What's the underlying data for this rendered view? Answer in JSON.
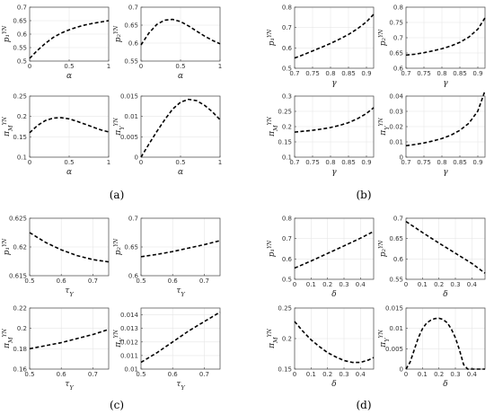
{
  "panel_labels": [
    "(a)",
    "(b)",
    "(c)",
    "(d)"
  ],
  "colors": {
    "curve": "#000000",
    "grid": "#e6e6e6",
    "axis": "#444444"
  },
  "chart_data": [
    {
      "id": "a1",
      "type": "line",
      "xlabel": "α",
      "ylabel": "p₁^{YN}",
      "xlim": [
        0,
        1
      ],
      "ylim": [
        0.5,
        0.7
      ],
      "xticks": [
        0,
        0.5,
        1
      ],
      "yticks": [
        0.5,
        0.55,
        0.6,
        0.65,
        0.7
      ],
      "xtick_labels": [
        "0",
        "0.5",
        "1"
      ],
      "ytick_labels": [
        "0.5",
        "0.55",
        "0.6",
        "0.65",
        "0.7"
      ],
      "grid": true,
      "style": "dashed",
      "series": [
        {
          "x": [
            0,
            0.1,
            0.2,
            0.3,
            0.4,
            0.5,
            0.6,
            0.7,
            0.8,
            0.9,
            1.0
          ],
          "y": [
            0.51,
            0.54,
            0.566,
            0.588,
            0.604,
            0.616,
            0.626,
            0.634,
            0.64,
            0.645,
            0.65
          ]
        }
      ]
    },
    {
      "id": "a2",
      "type": "line",
      "xlabel": "α",
      "ylabel": "p₂^{YN}",
      "xlim": [
        0,
        1
      ],
      "ylim": [
        0.55,
        0.7
      ],
      "xticks": [
        0,
        0.5,
        1
      ],
      "yticks": [
        0.55,
        0.6,
        0.65,
        0.7
      ],
      "xtick_labels": [
        "0",
        "0.5",
        "1"
      ],
      "ytick_labels": [
        "0.55",
        "0.6",
        "0.65",
        "0.7"
      ],
      "grid": true,
      "style": "dashed",
      "series": [
        {
          "x": [
            0,
            0.1,
            0.2,
            0.3,
            0.4,
            0.5,
            0.6,
            0.7,
            0.8,
            0.9,
            1.0
          ],
          "y": [
            0.595,
            0.628,
            0.652,
            0.664,
            0.666,
            0.66,
            0.648,
            0.634,
            0.62,
            0.608,
            0.598
          ]
        }
      ]
    },
    {
      "id": "a3",
      "type": "line",
      "xlabel": "α",
      "ylabel": "π_M^{YN}",
      "xlim": [
        0,
        1
      ],
      "ylim": [
        0.1,
        0.25
      ],
      "xticks": [
        0,
        0.5,
        1
      ],
      "yticks": [
        0.1,
        0.15,
        0.2,
        0.25
      ],
      "xtick_labels": [
        "0",
        "0.5",
        "1"
      ],
      "ytick_labels": [
        "0.1",
        "0.15",
        "0.2",
        "0.25"
      ],
      "grid": true,
      "style": "dashed",
      "series": [
        {
          "x": [
            0,
            0.1,
            0.2,
            0.3,
            0.4,
            0.5,
            0.6,
            0.7,
            0.8,
            0.9,
            1.0
          ],
          "y": [
            0.16,
            0.178,
            0.19,
            0.196,
            0.197,
            0.194,
            0.188,
            0.181,
            0.174,
            0.167,
            0.162
          ]
        }
      ]
    },
    {
      "id": "a4",
      "type": "line",
      "xlabel": "α",
      "ylabel": "π_Y^{YN}",
      "xlim": [
        0,
        1
      ],
      "ylim": [
        0,
        0.015
      ],
      "xticks": [
        0,
        0.5,
        1
      ],
      "yticks": [
        0,
        0.005,
        0.01,
        0.015
      ],
      "xtick_labels": [
        "0",
        "0.5",
        "1"
      ],
      "ytick_labels": [
        "0",
        "0.005",
        "0.01",
        "0.015"
      ],
      "grid": true,
      "style": "dashed",
      "series": [
        {
          "x": [
            0,
            0.1,
            0.2,
            0.3,
            0.4,
            0.5,
            0.6,
            0.7,
            0.8,
            0.9,
            1.0
          ],
          "y": [
            0,
            0.0032,
            0.0063,
            0.0092,
            0.0118,
            0.0135,
            0.0142,
            0.0139,
            0.0128,
            0.0112,
            0.0092
          ]
        }
      ]
    },
    {
      "id": "b1",
      "type": "line",
      "xlabel": "γ",
      "ylabel": "p₁^{YN}",
      "xlim": [
        0.7,
        0.92
      ],
      "ylim": [
        0.5,
        0.8
      ],
      "xticks": [
        0.7,
        0.75,
        0.8,
        0.85,
        0.9
      ],
      "yticks": [
        0.5,
        0.6,
        0.7,
        0.8
      ],
      "xtick_labels": [
        "0.7",
        "0.75",
        "0.8",
        "0.85",
        "0.9"
      ],
      "ytick_labels": [
        "0.5",
        "0.6",
        "0.7",
        "0.8"
      ],
      "grid": true,
      "style": "dashed",
      "series": [
        {
          "x": [
            0.7,
            0.725,
            0.75,
            0.775,
            0.8,
            0.825,
            0.85,
            0.875,
            0.9,
            0.92
          ],
          "y": [
            0.55,
            0.567,
            0.585,
            0.603,
            0.622,
            0.643,
            0.666,
            0.694,
            0.728,
            0.765
          ]
        }
      ]
    },
    {
      "id": "b2",
      "type": "line",
      "xlabel": "γ",
      "ylabel": "p₂^{YN}",
      "xlim": [
        0.7,
        0.92
      ],
      "ylim": [
        0.6,
        0.8
      ],
      "xticks": [
        0.7,
        0.75,
        0.8,
        0.85,
        0.9
      ],
      "yticks": [
        0.6,
        0.65,
        0.7,
        0.75,
        0.8
      ],
      "xtick_labels": [
        "0.7",
        "0.75",
        "0.8",
        "0.85",
        "0.9"
      ],
      "ytick_labels": [
        "0.6",
        "0.65",
        "0.7",
        "0.75",
        "0.8"
      ],
      "grid": true,
      "style": "dashed",
      "series": [
        {
          "x": [
            0.7,
            0.725,
            0.75,
            0.775,
            0.8,
            0.825,
            0.85,
            0.875,
            0.9,
            0.92
          ],
          "y": [
            0.643,
            0.646,
            0.651,
            0.657,
            0.664,
            0.673,
            0.685,
            0.702,
            0.728,
            0.765
          ]
        }
      ]
    },
    {
      "id": "b3",
      "type": "line",
      "xlabel": "γ",
      "ylabel": "π_M^{YN}",
      "xlim": [
        0.7,
        0.92
      ],
      "ylim": [
        0.1,
        0.3
      ],
      "xticks": [
        0.7,
        0.75,
        0.8,
        0.85,
        0.9
      ],
      "yticks": [
        0.1,
        0.15,
        0.2,
        0.25,
        0.3
      ],
      "xtick_labels": [
        "0.7",
        "0.75",
        "0.8",
        "0.85",
        "0.9"
      ],
      "ytick_labels": [
        "0.1",
        "0.15",
        "0.2",
        "0.25",
        "0.3"
      ],
      "grid": true,
      "style": "dashed",
      "series": [
        {
          "x": [
            0.7,
            0.725,
            0.75,
            0.775,
            0.8,
            0.825,
            0.85,
            0.875,
            0.9,
            0.92
          ],
          "y": [
            0.182,
            0.185,
            0.188,
            0.192,
            0.197,
            0.204,
            0.213,
            0.226,
            0.243,
            0.262
          ]
        }
      ]
    },
    {
      "id": "b4",
      "type": "line",
      "xlabel": "γ",
      "ylabel": "π_Y^{YN}",
      "xlim": [
        0.7,
        0.92
      ],
      "ylim": [
        0,
        0.04
      ],
      "xticks": [
        0.7,
        0.75,
        0.8,
        0.85,
        0.9
      ],
      "yticks": [
        0,
        0.01,
        0.02,
        0.03,
        0.04
      ],
      "xtick_labels": [
        "0.7",
        "0.75",
        "0.8",
        "0.85",
        "0.9"
      ],
      "ytick_labels": [
        "0",
        "0.01",
        "0.02",
        "0.03",
        "0.04"
      ],
      "grid": true,
      "style": "dashed",
      "series": [
        {
          "x": [
            0.7,
            0.725,
            0.75,
            0.775,
            0.8,
            0.825,
            0.85,
            0.875,
            0.9,
            0.92
          ],
          "y": [
            0.0075,
            0.0083,
            0.0093,
            0.0106,
            0.0122,
            0.0144,
            0.0176,
            0.0222,
            0.0302,
            0.0435
          ]
        }
      ]
    },
    {
      "id": "c1",
      "type": "line",
      "xlabel": "τ_Y",
      "ylabel": "p₁^{YN}",
      "xlim": [
        0.5,
        0.75
      ],
      "ylim": [
        0.615,
        0.625
      ],
      "xticks": [
        0.5,
        0.6,
        0.7
      ],
      "yticks": [
        0.615,
        0.62,
        0.625
      ],
      "xtick_labels": [
        "0.5",
        "0.6",
        "0.7"
      ],
      "ytick_labels": [
        "0.615",
        "0.62",
        "0.625"
      ],
      "grid": true,
      "style": "dashed",
      "series": [
        {
          "x": [
            0.5,
            0.55,
            0.6,
            0.65,
            0.7,
            0.75
          ],
          "y": [
            0.6225,
            0.6208,
            0.6195,
            0.6185,
            0.6178,
            0.6174
          ]
        }
      ]
    },
    {
      "id": "c2",
      "type": "line",
      "xlabel": "τ_Y",
      "ylabel": "p₂^{YN}",
      "xlim": [
        0.5,
        0.75
      ],
      "ylim": [
        0.6,
        0.7
      ],
      "xticks": [
        0.5,
        0.6,
        0.7
      ],
      "yticks": [
        0.6,
        0.65,
        0.7
      ],
      "xtick_labels": [
        "0.5",
        "0.6",
        "0.7"
      ],
      "ytick_labels": [
        "0.6",
        "0.65",
        "0.7"
      ],
      "grid": true,
      "style": "dashed",
      "series": [
        {
          "x": [
            0.5,
            0.55,
            0.6,
            0.65,
            0.7,
            0.75
          ],
          "y": [
            0.633,
            0.637,
            0.642,
            0.648,
            0.654,
            0.661
          ]
        }
      ]
    },
    {
      "id": "c3",
      "type": "line",
      "xlabel": "τ_Y",
      "ylabel": "π_M^{YN}",
      "xlim": [
        0.5,
        0.75
      ],
      "ylim": [
        0.16,
        0.22
      ],
      "xticks": [
        0.5,
        0.6,
        0.7
      ],
      "yticks": [
        0.16,
        0.18,
        0.2,
        0.22
      ],
      "xtick_labels": [
        "0.5",
        "0.6",
        "0.7"
      ],
      "ytick_labels": [
        "0.16",
        "0.18",
        "0.2",
        "0.22"
      ],
      "grid": true,
      "style": "dashed",
      "series": [
        {
          "x": [
            0.5,
            0.55,
            0.6,
            0.65,
            0.7,
            0.75
          ],
          "y": [
            0.18,
            0.183,
            0.186,
            0.19,
            0.194,
            0.199
          ]
        }
      ]
    },
    {
      "id": "c4",
      "type": "line",
      "xlabel": "τ_Y",
      "ylabel": "π_Y^{YN}",
      "xlim": [
        0.5,
        0.75
      ],
      "ylim": [
        0.01,
        0.0145
      ],
      "xticks": [
        0.5,
        0.6,
        0.7
      ],
      "yticks": [
        0.01,
        0.011,
        0.012,
        0.013,
        0.014
      ],
      "xtick_labels": [
        "0.5",
        "0.6",
        "0.7"
      ],
      "ytick_labels": [
        "0.01",
        "0.011",
        "0.012",
        "0.013",
        "0.014"
      ],
      "grid": true,
      "style": "dashed",
      "series": [
        {
          "x": [
            0.5,
            0.55,
            0.6,
            0.65,
            0.7,
            0.75
          ],
          "y": [
            0.0105,
            0.0112,
            0.012,
            0.0128,
            0.0135,
            0.0142
          ]
        }
      ]
    },
    {
      "id": "d1",
      "type": "line",
      "xlabel": "δ",
      "ylabel": "p₁^{YN}",
      "xlim": [
        0,
        0.48
      ],
      "ylim": [
        0.5,
        0.8
      ],
      "xticks": [
        0,
        0.1,
        0.2,
        0.3,
        0.4
      ],
      "yticks": [
        0.5,
        0.6,
        0.7,
        0.8
      ],
      "xtick_labels": [
        "0",
        "0.1",
        "0.2",
        "0.3",
        "0.4"
      ],
      "ytick_labels": [
        "0.5",
        "0.6",
        "0.7",
        "0.8"
      ],
      "grid": true,
      "style": "dashed",
      "series": [
        {
          "x": [
            0,
            0.1,
            0.2,
            0.3,
            0.4,
            0.48
          ],
          "y": [
            0.555,
            0.59,
            0.627,
            0.664,
            0.702,
            0.735
          ]
        }
      ]
    },
    {
      "id": "d2",
      "type": "line",
      "xlabel": "δ",
      "ylabel": "p₂^{YN}",
      "xlim": [
        0,
        0.48
      ],
      "ylim": [
        0.55,
        0.7
      ],
      "xticks": [
        0,
        0.1,
        0.2,
        0.3,
        0.4
      ],
      "yticks": [
        0.55,
        0.6,
        0.65,
        0.7
      ],
      "xtick_labels": [
        "0",
        "0.1",
        "0.2",
        "0.3",
        "0.4"
      ],
      "ytick_labels": [
        "0.55",
        "0.6",
        "0.65",
        "0.7"
      ],
      "grid": true,
      "style": "dashed",
      "series": [
        {
          "x": [
            0,
            0.1,
            0.2,
            0.3,
            0.4,
            0.48
          ],
          "y": [
            0.692,
            0.665,
            0.639,
            0.614,
            0.589,
            0.565
          ]
        }
      ]
    },
    {
      "id": "d3",
      "type": "line",
      "xlabel": "δ",
      "ylabel": "π_M^{YN}",
      "xlim": [
        0,
        0.48
      ],
      "ylim": [
        0.15,
        0.25
      ],
      "xticks": [
        0,
        0.1,
        0.2,
        0.3,
        0.4
      ],
      "yticks": [
        0.15,
        0.2,
        0.25
      ],
      "xtick_labels": [
        "0",
        "0.1",
        "0.2",
        "0.3",
        "0.4"
      ],
      "ytick_labels": [
        "0.15",
        "0.2",
        "0.25"
      ],
      "grid": true,
      "style": "dashed",
      "series": [
        {
          "x": [
            0,
            0.05,
            0.1,
            0.15,
            0.2,
            0.25,
            0.3,
            0.35,
            0.4,
            0.45,
            0.48
          ],
          "y": [
            0.228,
            0.212,
            0.198,
            0.187,
            0.177,
            0.17,
            0.164,
            0.161,
            0.161,
            0.165,
            0.169
          ]
        }
      ]
    },
    {
      "id": "d4",
      "type": "line",
      "xlabel": "δ",
      "ylabel": "π_Y^{YN}",
      "xlim": [
        0,
        0.48
      ],
      "ylim": [
        0,
        0.015
      ],
      "xticks": [
        0,
        0.1,
        0.2,
        0.3,
        0.4
      ],
      "yticks": [
        0,
        0.005,
        0.01,
        0.015
      ],
      "xtick_labels": [
        "0",
        "0.1",
        "0.2",
        "0.3",
        "0.4"
      ],
      "ytick_labels": [
        "0",
        "0.005",
        "0.01",
        "0.015"
      ],
      "grid": true,
      "style": "dashed",
      "series": [
        {
          "x": [
            0,
            0.025,
            0.05,
            0.075,
            0.1,
            0.125,
            0.15,
            0.175,
            0.2,
            0.225,
            0.25,
            0.275,
            0.3,
            0.325,
            0.35,
            0.375,
            0.4,
            0.48
          ],
          "y": [
            0,
            0.0017,
            0.0047,
            0.0077,
            0.0099,
            0.0113,
            0.012,
            0.0124,
            0.0125,
            0.0122,
            0.0114,
            0.0099,
            0.0077,
            0.0047,
            0.0011,
            0,
            0,
            0
          ]
        }
      ]
    }
  ]
}
